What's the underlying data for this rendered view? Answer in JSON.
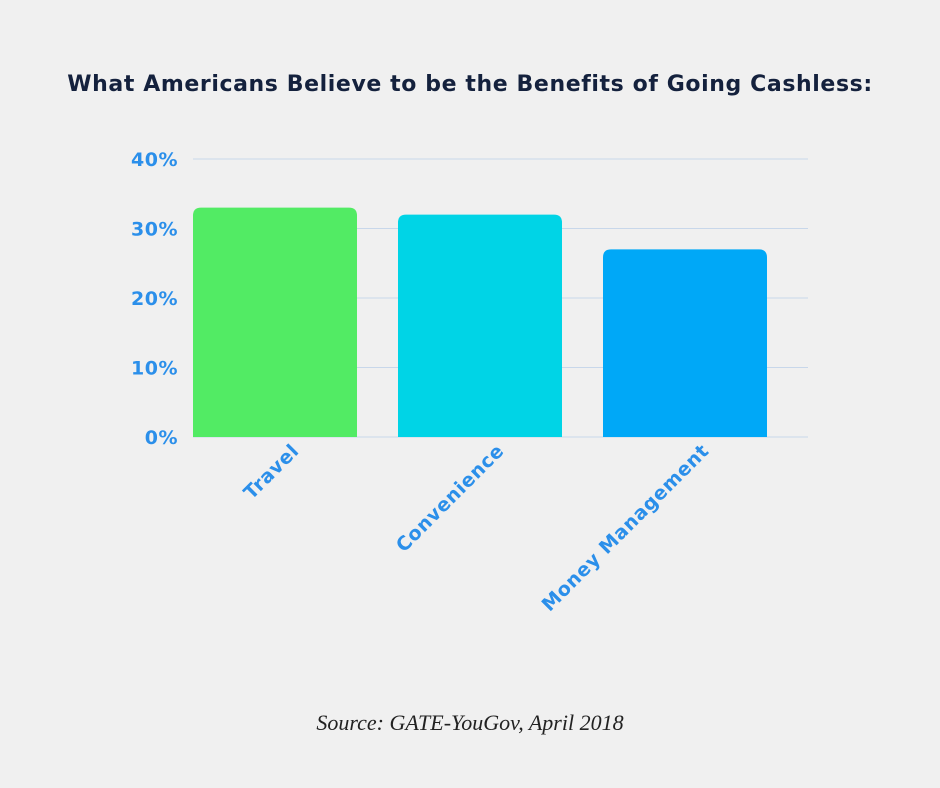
{
  "title": "What Americans Believe to be the Benefits of Going Cashless:",
  "source": "Source: GATE-YouGov, April 2018",
  "chart_data": {
    "type": "bar",
    "title": "What Americans Believe to be the Benefits of Going Cashless:",
    "categories": [
      "Travel",
      "Convenience",
      "Money Management"
    ],
    "values": [
      33,
      32,
      27
    ],
    "colors": [
      "#52eb64",
      "#00d4e6",
      "#00a8f7"
    ],
    "ylim": [
      0,
      40
    ],
    "yticks": [
      0,
      10,
      20,
      30,
      40
    ],
    "ytick_labels": [
      "0%",
      "10%",
      "20%",
      "30%",
      "40%"
    ],
    "xlabel": "",
    "ylabel": "",
    "grid": true,
    "axis_color": "#2b8fea",
    "grid_color": "#c8d7ea"
  }
}
